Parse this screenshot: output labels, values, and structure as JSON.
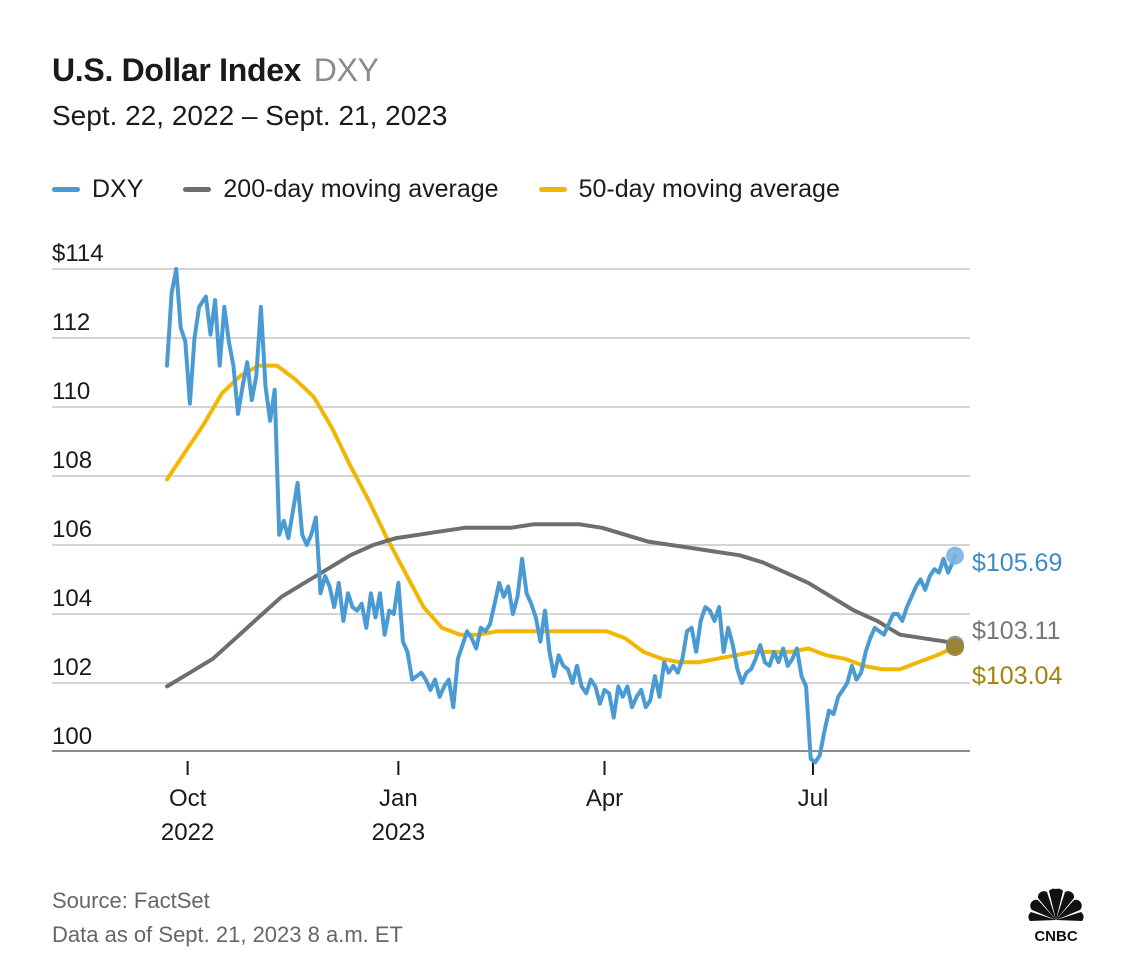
{
  "header": {
    "title": "U.S. Dollar Index",
    "ticker": "DXY",
    "subtitle": "Sept. 22, 2022 – Sept. 21, 2023"
  },
  "legend": [
    {
      "label": "DXY",
      "color": "#4a9bd4"
    },
    {
      "label": "200-day moving average",
      "color": "#6e6e6e"
    },
    {
      "label": "50-day moving average",
      "color": "#f2b705"
    }
  ],
  "footer": {
    "source": "Source: FactSet",
    "data_as_of": "Data as of Sept. 21, 2023 8 a.m. ET",
    "logo_text": "CNBC"
  },
  "chart_data": {
    "type": "line",
    "title": "U.S. Dollar Index DXY",
    "x_range": [
      "2022-09-22",
      "2023-09-21"
    ],
    "ylim": [
      99.5,
      114
    ],
    "y_ticks": [
      {
        "value": 114,
        "label": "$114"
      },
      {
        "value": 112,
        "label": "112"
      },
      {
        "value": 110,
        "label": "110"
      },
      {
        "value": 108,
        "label": "108"
      },
      {
        "value": 106,
        "label": "106"
      },
      {
        "value": 104,
        "label": "104"
      },
      {
        "value": 102,
        "label": "102"
      },
      {
        "value": 100,
        "label": "100"
      }
    ],
    "x_ticks": [
      {
        "day": 9,
        "label": "Oct",
        "sublabel": "2022"
      },
      {
        "day": 101,
        "label": "Jan",
        "sublabel": "2023"
      },
      {
        "day": 191,
        "label": "Apr",
        "sublabel": ""
      },
      {
        "day": 282,
        "label": "Jul",
        "sublabel": ""
      }
    ],
    "x_axis_unit": "days since 2022-09-22",
    "series": [
      {
        "name": "DXY",
        "color": "#4a9bd4",
        "end_label": "$105.69",
        "points": [
          [
            0,
            111.2
          ],
          [
            2,
            113.3
          ],
          [
            4,
            114.0
          ],
          [
            6,
            112.3
          ],
          [
            8,
            111.9
          ],
          [
            10,
            110.1
          ],
          [
            12,
            112.0
          ],
          [
            14,
            112.9
          ],
          [
            17,
            113.2
          ],
          [
            19,
            112.1
          ],
          [
            21,
            113.1
          ],
          [
            23,
            111.2
          ],
          [
            25,
            112.9
          ],
          [
            27,
            111.9
          ],
          [
            29,
            111.2
          ],
          [
            31,
            109.8
          ],
          [
            33,
            110.6
          ],
          [
            35,
            111.3
          ],
          [
            37,
            110.2
          ],
          [
            39,
            110.9
          ],
          [
            41,
            112.9
          ],
          [
            43,
            110.6
          ],
          [
            45,
            109.6
          ],
          [
            47,
            110.5
          ],
          [
            49,
            106.3
          ],
          [
            51,
            106.7
          ],
          [
            53,
            106.2
          ],
          [
            55,
            107.0
          ],
          [
            57,
            107.8
          ],
          [
            59,
            106.3
          ],
          [
            61,
            106.0
          ],
          [
            63,
            106.3
          ],
          [
            65,
            106.8
          ],
          [
            67,
            104.6
          ],
          [
            69,
            105.1
          ],
          [
            71,
            104.8
          ],
          [
            73,
            104.2
          ],
          [
            75,
            104.9
          ],
          [
            77,
            103.8
          ],
          [
            79,
            104.6
          ],
          [
            81,
            104.2
          ],
          [
            83,
            104.1
          ],
          [
            85,
            104.3
          ],
          [
            87,
            103.6
          ],
          [
            89,
            104.6
          ],
          [
            91,
            103.9
          ],
          [
            93,
            104.6
          ],
          [
            95,
            103.4
          ],
          [
            97,
            104.1
          ],
          [
            99,
            104.0
          ],
          [
            101,
            104.9
          ],
          [
            103,
            103.2
          ],
          [
            105,
            102.9
          ],
          [
            107,
            102.1
          ],
          [
            109,
            102.2
          ],
          [
            111,
            102.3
          ],
          [
            113,
            102.1
          ],
          [
            115,
            101.8
          ],
          [
            117,
            102.1
          ],
          [
            119,
            101.6
          ],
          [
            121,
            101.9
          ],
          [
            123,
            102.1
          ],
          [
            125,
            101.3
          ],
          [
            127,
            102.7
          ],
          [
            129,
            103.1
          ],
          [
            131,
            103.5
          ],
          [
            133,
            103.3
          ],
          [
            135,
            103.0
          ],
          [
            137,
            103.6
          ],
          [
            139,
            103.5
          ],
          [
            141,
            103.7
          ],
          [
            143,
            104.3
          ],
          [
            145,
            104.9
          ],
          [
            147,
            104.5
          ],
          [
            149,
            104.8
          ],
          [
            151,
            104.0
          ],
          [
            153,
            104.5
          ],
          [
            155,
            105.6
          ],
          [
            157,
            104.6
          ],
          [
            159,
            104.3
          ],
          [
            161,
            103.9
          ],
          [
            163,
            103.2
          ],
          [
            165,
            104.1
          ],
          [
            167,
            102.9
          ],
          [
            169,
            102.2
          ],
          [
            171,
            102.8
          ],
          [
            173,
            102.5
          ],
          [
            175,
            102.4
          ],
          [
            177,
            102.0
          ],
          [
            179,
            102.5
          ],
          [
            181,
            101.9
          ],
          [
            183,
            101.7
          ],
          [
            185,
            102.1
          ],
          [
            187,
            101.9
          ],
          [
            189,
            101.4
          ],
          [
            191,
            101.8
          ],
          [
            193,
            101.7
          ],
          [
            195,
            101.0
          ],
          [
            197,
            101.9
          ],
          [
            199,
            101.6
          ],
          [
            201,
            101.9
          ],
          [
            203,
            101.3
          ],
          [
            205,
            101.6
          ],
          [
            207,
            101.8
          ],
          [
            209,
            101.3
          ],
          [
            211,
            101.5
          ],
          [
            213,
            102.2
          ],
          [
            215,
            101.6
          ],
          [
            217,
            102.6
          ],
          [
            219,
            102.3
          ],
          [
            221,
            102.5
          ],
          [
            223,
            102.3
          ],
          [
            225,
            102.7
          ],
          [
            227,
            103.5
          ],
          [
            229,
            103.6
          ],
          [
            231,
            102.9
          ],
          [
            233,
            103.8
          ],
          [
            235,
            104.2
          ],
          [
            237,
            104.1
          ],
          [
            239,
            103.8
          ],
          [
            241,
            104.2
          ],
          [
            243,
            102.9
          ],
          [
            245,
            103.6
          ],
          [
            247,
            103.1
          ],
          [
            249,
            102.4
          ],
          [
            251,
            102.0
          ],
          [
            253,
            102.3
          ],
          [
            255,
            102.4
          ],
          [
            257,
            102.7
          ],
          [
            259,
            103.1
          ],
          [
            261,
            102.6
          ],
          [
            263,
            102.5
          ],
          [
            265,
            102.9
          ],
          [
            267,
            102.6
          ],
          [
            269,
            103.0
          ],
          [
            271,
            102.5
          ],
          [
            273,
            102.7
          ],
          [
            275,
            103.0
          ],
          [
            277,
            102.2
          ],
          [
            279,
            101.9
          ],
          [
            281,
            99.8
          ],
          [
            283,
            99.7
          ],
          [
            285,
            99.9
          ],
          [
            287,
            100.6
          ],
          [
            289,
            101.2
          ],
          [
            291,
            101.1
          ],
          [
            293,
            101.6
          ],
          [
            295,
            101.8
          ],
          [
            297,
            102.0
          ],
          [
            299,
            102.5
          ],
          [
            301,
            102.1
          ],
          [
            303,
            102.3
          ],
          [
            305,
            102.9
          ],
          [
            307,
            103.3
          ],
          [
            309,
            103.6
          ],
          [
            311,
            103.5
          ],
          [
            313,
            103.4
          ],
          [
            315,
            103.7
          ],
          [
            317,
            104.0
          ],
          [
            319,
            104.0
          ],
          [
            321,
            103.8
          ],
          [
            323,
            104.2
          ],
          [
            325,
            104.5
          ],
          [
            327,
            104.8
          ],
          [
            329,
            105.0
          ],
          [
            331,
            104.7
          ],
          [
            333,
            105.1
          ],
          [
            335,
            105.3
          ],
          [
            337,
            105.2
          ],
          [
            339,
            105.6
          ],
          [
            341,
            105.2
          ],
          [
            343,
            105.5
          ],
          [
            344,
            105.69
          ]
        ]
      },
      {
        "name": "200-day moving average",
        "color": "#6e6e6e",
        "end_label": "$103.11",
        "points": [
          [
            0,
            101.9
          ],
          [
            10,
            102.3
          ],
          [
            20,
            102.7
          ],
          [
            30,
            103.3
          ],
          [
            40,
            103.9
          ],
          [
            50,
            104.5
          ],
          [
            60,
            104.9
          ],
          [
            70,
            105.3
          ],
          [
            80,
            105.7
          ],
          [
            90,
            106.0
          ],
          [
            100,
            106.2
          ],
          [
            110,
            106.3
          ],
          [
            120,
            106.4
          ],
          [
            130,
            106.5
          ],
          [
            140,
            106.5
          ],
          [
            150,
            106.5
          ],
          [
            160,
            106.6
          ],
          [
            170,
            106.6
          ],
          [
            180,
            106.6
          ],
          [
            190,
            106.5
          ],
          [
            200,
            106.3
          ],
          [
            210,
            106.1
          ],
          [
            220,
            106.0
          ],
          [
            230,
            105.9
          ],
          [
            240,
            105.8
          ],
          [
            250,
            105.7
          ],
          [
            260,
            105.5
          ],
          [
            270,
            105.2
          ],
          [
            280,
            104.9
          ],
          [
            290,
            104.5
          ],
          [
            300,
            104.1
          ],
          [
            310,
            103.8
          ],
          [
            320,
            103.4
          ],
          [
            330,
            103.3
          ],
          [
            340,
            103.2
          ],
          [
            344,
            103.11
          ]
        ]
      },
      {
        "name": "50-day moving average",
        "color": "#f2b705",
        "end_label": "$103.04",
        "points": [
          [
            0,
            107.9
          ],
          [
            8,
            108.7
          ],
          [
            16,
            109.5
          ],
          [
            24,
            110.4
          ],
          [
            32,
            110.9
          ],
          [
            40,
            111.2
          ],
          [
            48,
            111.2
          ],
          [
            56,
            110.8
          ],
          [
            64,
            110.3
          ],
          [
            72,
            109.4
          ],
          [
            80,
            108.3
          ],
          [
            88,
            107.3
          ],
          [
            96,
            106.2
          ],
          [
            104,
            105.2
          ],
          [
            112,
            104.2
          ],
          [
            120,
            103.6
          ],
          [
            128,
            103.4
          ],
          [
            136,
            103.4
          ],
          [
            144,
            103.5
          ],
          [
            152,
            103.5
          ],
          [
            160,
            103.5
          ],
          [
            168,
            103.5
          ],
          [
            176,
            103.5
          ],
          [
            184,
            103.5
          ],
          [
            192,
            103.5
          ],
          [
            200,
            103.3
          ],
          [
            208,
            102.9
          ],
          [
            216,
            102.7
          ],
          [
            224,
            102.6
          ],
          [
            232,
            102.6
          ],
          [
            240,
            102.7
          ],
          [
            248,
            102.8
          ],
          [
            256,
            102.9
          ],
          [
            264,
            102.9
          ],
          [
            272,
            102.9
          ],
          [
            280,
            103.0
          ],
          [
            288,
            102.8
          ],
          [
            296,
            102.7
          ],
          [
            304,
            102.5
          ],
          [
            312,
            102.4
          ],
          [
            320,
            102.4
          ],
          [
            328,
            102.6
          ],
          [
            336,
            102.8
          ],
          [
            344,
            103.04
          ]
        ]
      }
    ]
  }
}
